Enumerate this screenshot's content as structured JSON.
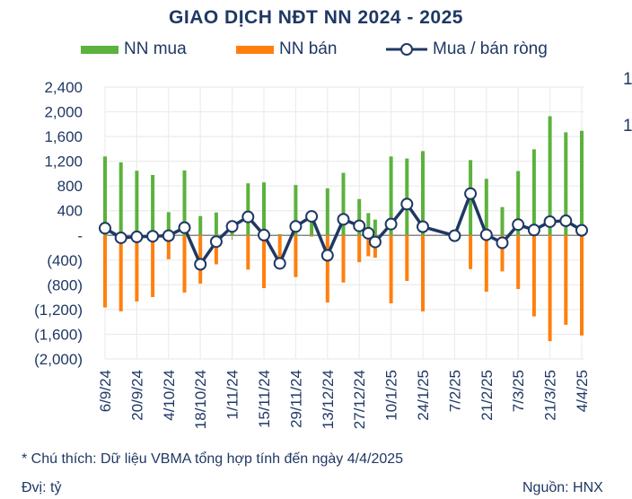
{
  "chart_data": {
    "type": "bar",
    "title": "GIAO DỊCH NĐT NN 2024 - 2025",
    "xlabel": "",
    "ylabel": "",
    "ylim": [
      -2000,
      2400
    ],
    "yticks": [
      2400,
      2000,
      1600,
      1200,
      800,
      400,
      0,
      -400,
      -800,
      -1200,
      -1600,
      -2000
    ],
    "ytick_labels": [
      "2,400",
      "2,000",
      "1,600",
      "1,200",
      "800",
      "400",
      "-",
      "(400)",
      "(800)",
      "(1,200)",
      "(1,600)",
      "(2,000)"
    ],
    "grid": true,
    "legend_position": "top",
    "x_tick_labels": [
      "6/9/24",
      "20/9/24",
      "4/10/24",
      "18/10/24",
      "1/11/24",
      "15/11/24",
      "29/11/24",
      "13/12/24",
      "27/12/24",
      "10/1/25",
      "24/1/25",
      "7/2/25",
      "21/2/25",
      "7/3/25",
      "21/3/25",
      "4/4/25"
    ],
    "x_tick_days": [
      0,
      14,
      28,
      42,
      56,
      70,
      84,
      98,
      112,
      126,
      140,
      154,
      168,
      182,
      196,
      210
    ],
    "x_days": [
      0,
      7,
      14,
      21,
      28,
      35,
      42,
      49,
      56,
      63,
      70,
      77,
      84,
      91,
      98,
      105,
      112,
      116,
      119,
      126,
      133,
      140,
      154,
      161,
      168,
      175,
      182,
      189,
      196,
      203,
      210
    ],
    "series": [
      {
        "name": "NN mua",
        "type": "bar",
        "color": "#5cb23c",
        "values": [
          1277,
          1181,
          1046,
          978,
          376,
          1051,
          313,
          371,
          150,
          843,
          858,
          20,
          815,
          300,
          762,
          1012,
          588,
          361,
          255,
          1277,
          1244,
          1364,
          0,
          1219,
          916,
          458,
          1041,
          1393,
          1928,
          1668,
          1692
        ]
      },
      {
        "name": "NN bán",
        "type": "bar",
        "color": "#ff7f0e",
        "values": [
          -1166,
          -1229,
          -1070,
          -998,
          -386,
          -925,
          -781,
          -468,
          -5,
          -554,
          -853,
          -470,
          -675,
          -20,
          -1085,
          -762,
          -434,
          -337,
          -361,
          -1099,
          -737,
          -1229,
          0,
          -545,
          -911,
          -583,
          -868,
          -1311,
          -1711,
          -1446,
          -1619
        ]
      },
      {
        "name": "Mua / bán ròng",
        "type": "line",
        "color": "#1f3864",
        "values": [
          116,
          -39,
          -24,
          -14,
          -5,
          125,
          -468,
          -101,
          145,
          299,
          5,
          -453,
          145,
          308,
          -323,
          260,
          154,
          34,
          -106,
          183,
          506,
          140,
          -5,
          675,
          10,
          -120,
          174,
          87,
          222,
          236,
          82
        ]
      }
    ]
  },
  "note": "* Chú thích: Dữ liệu VBMA tổng hợp tính đến ngày 4/4/2025",
  "unit": "Đvị: tỷ",
  "source": "Nguồn: HNX",
  "stray_labels": [
    "1",
    "1"
  ]
}
